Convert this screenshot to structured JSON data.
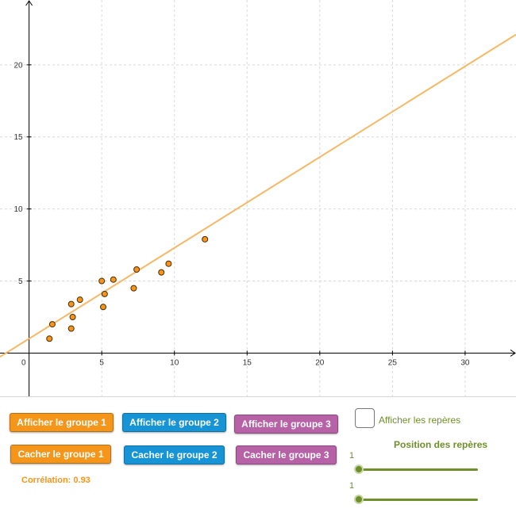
{
  "chart_data": {
    "type": "scatter",
    "x_ticks": [
      0,
      5,
      10,
      15,
      20,
      25,
      30
    ],
    "y_ticks": [
      5,
      10,
      15,
      20
    ],
    "xlim": [
      -2,
      33.5
    ],
    "ylim": [
      -3,
      24.5
    ],
    "grid": true,
    "points": [
      {
        "x": 1.4,
        "y": 1.0
      },
      {
        "x": 1.6,
        "y": 2.0
      },
      {
        "x": 2.9,
        "y": 3.4
      },
      {
        "x": 2.9,
        "y": 1.7
      },
      {
        "x": 3.0,
        "y": 2.5
      },
      {
        "x": 3.5,
        "y": 3.7
      },
      {
        "x": 5.0,
        "y": 5.0
      },
      {
        "x": 5.1,
        "y": 3.2
      },
      {
        "x": 5.2,
        "y": 4.1
      },
      {
        "x": 5.8,
        "y": 5.1
      },
      {
        "x": 7.2,
        "y": 4.5
      },
      {
        "x": 7.4,
        "y": 5.8
      },
      {
        "x": 9.1,
        "y": 5.6
      },
      {
        "x": 9.6,
        "y": 6.2
      },
      {
        "x": 12.1,
        "y": 7.9
      }
    ],
    "line": {
      "slope": 0.63,
      "intercept": 1.0
    },
    "colors": {
      "points": "#f5961b",
      "line": "#f5b865",
      "axis": "#000000",
      "grid": "#d9d9d9"
    }
  },
  "buttons": {
    "show_group_1": "Afficher le groupe 1",
    "show_group_2": "Afficher le groupe 2",
    "show_group_3": "Afficher le groupe 3",
    "hide_group_1": "Cacher le groupe 1",
    "hide_group_2": "Cacher le groupe 2",
    "hide_group_3": "Cacher le groupe 3"
  },
  "correlation_label": "Corrélation: 0.93",
  "checkbox": {
    "label": "Afficher les repères",
    "checked": false
  },
  "position_title": "Position des repères",
  "sliders": [
    {
      "value": "1",
      "fraction": 0
    },
    {
      "value": "1",
      "fraction": 0
    }
  ],
  "colors": {
    "orange": "#f5961b",
    "blue": "#1694d6",
    "purple": "#b762a7",
    "green": "#6f8f2a"
  }
}
